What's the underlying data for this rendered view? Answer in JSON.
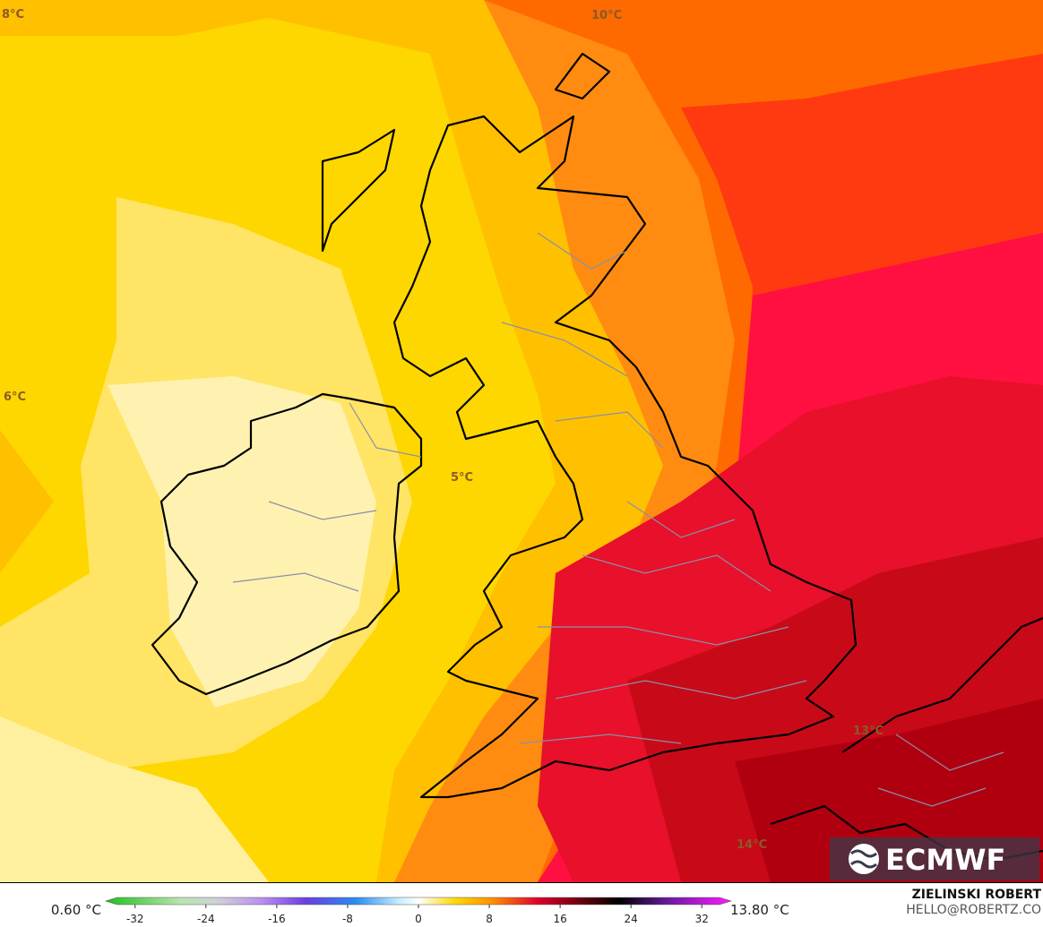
{
  "map": {
    "contour_labels": [
      "8°C",
      "10°C",
      "6°C",
      "5°C",
      "13°C",
      "14°C"
    ],
    "logo": "ECMWF"
  },
  "colorbar": {
    "min_label": "0.60 °C",
    "max_label": "13.80 °C",
    "lim": [
      -34,
      34
    ],
    "ticks": [
      -32,
      -24,
      -16,
      -8,
      0,
      8,
      16,
      24,
      32
    ]
  },
  "credit": {
    "name": "ZIELINSKI ROBERT",
    "email": "HELLO@ROBERTZ.CO"
  }
}
